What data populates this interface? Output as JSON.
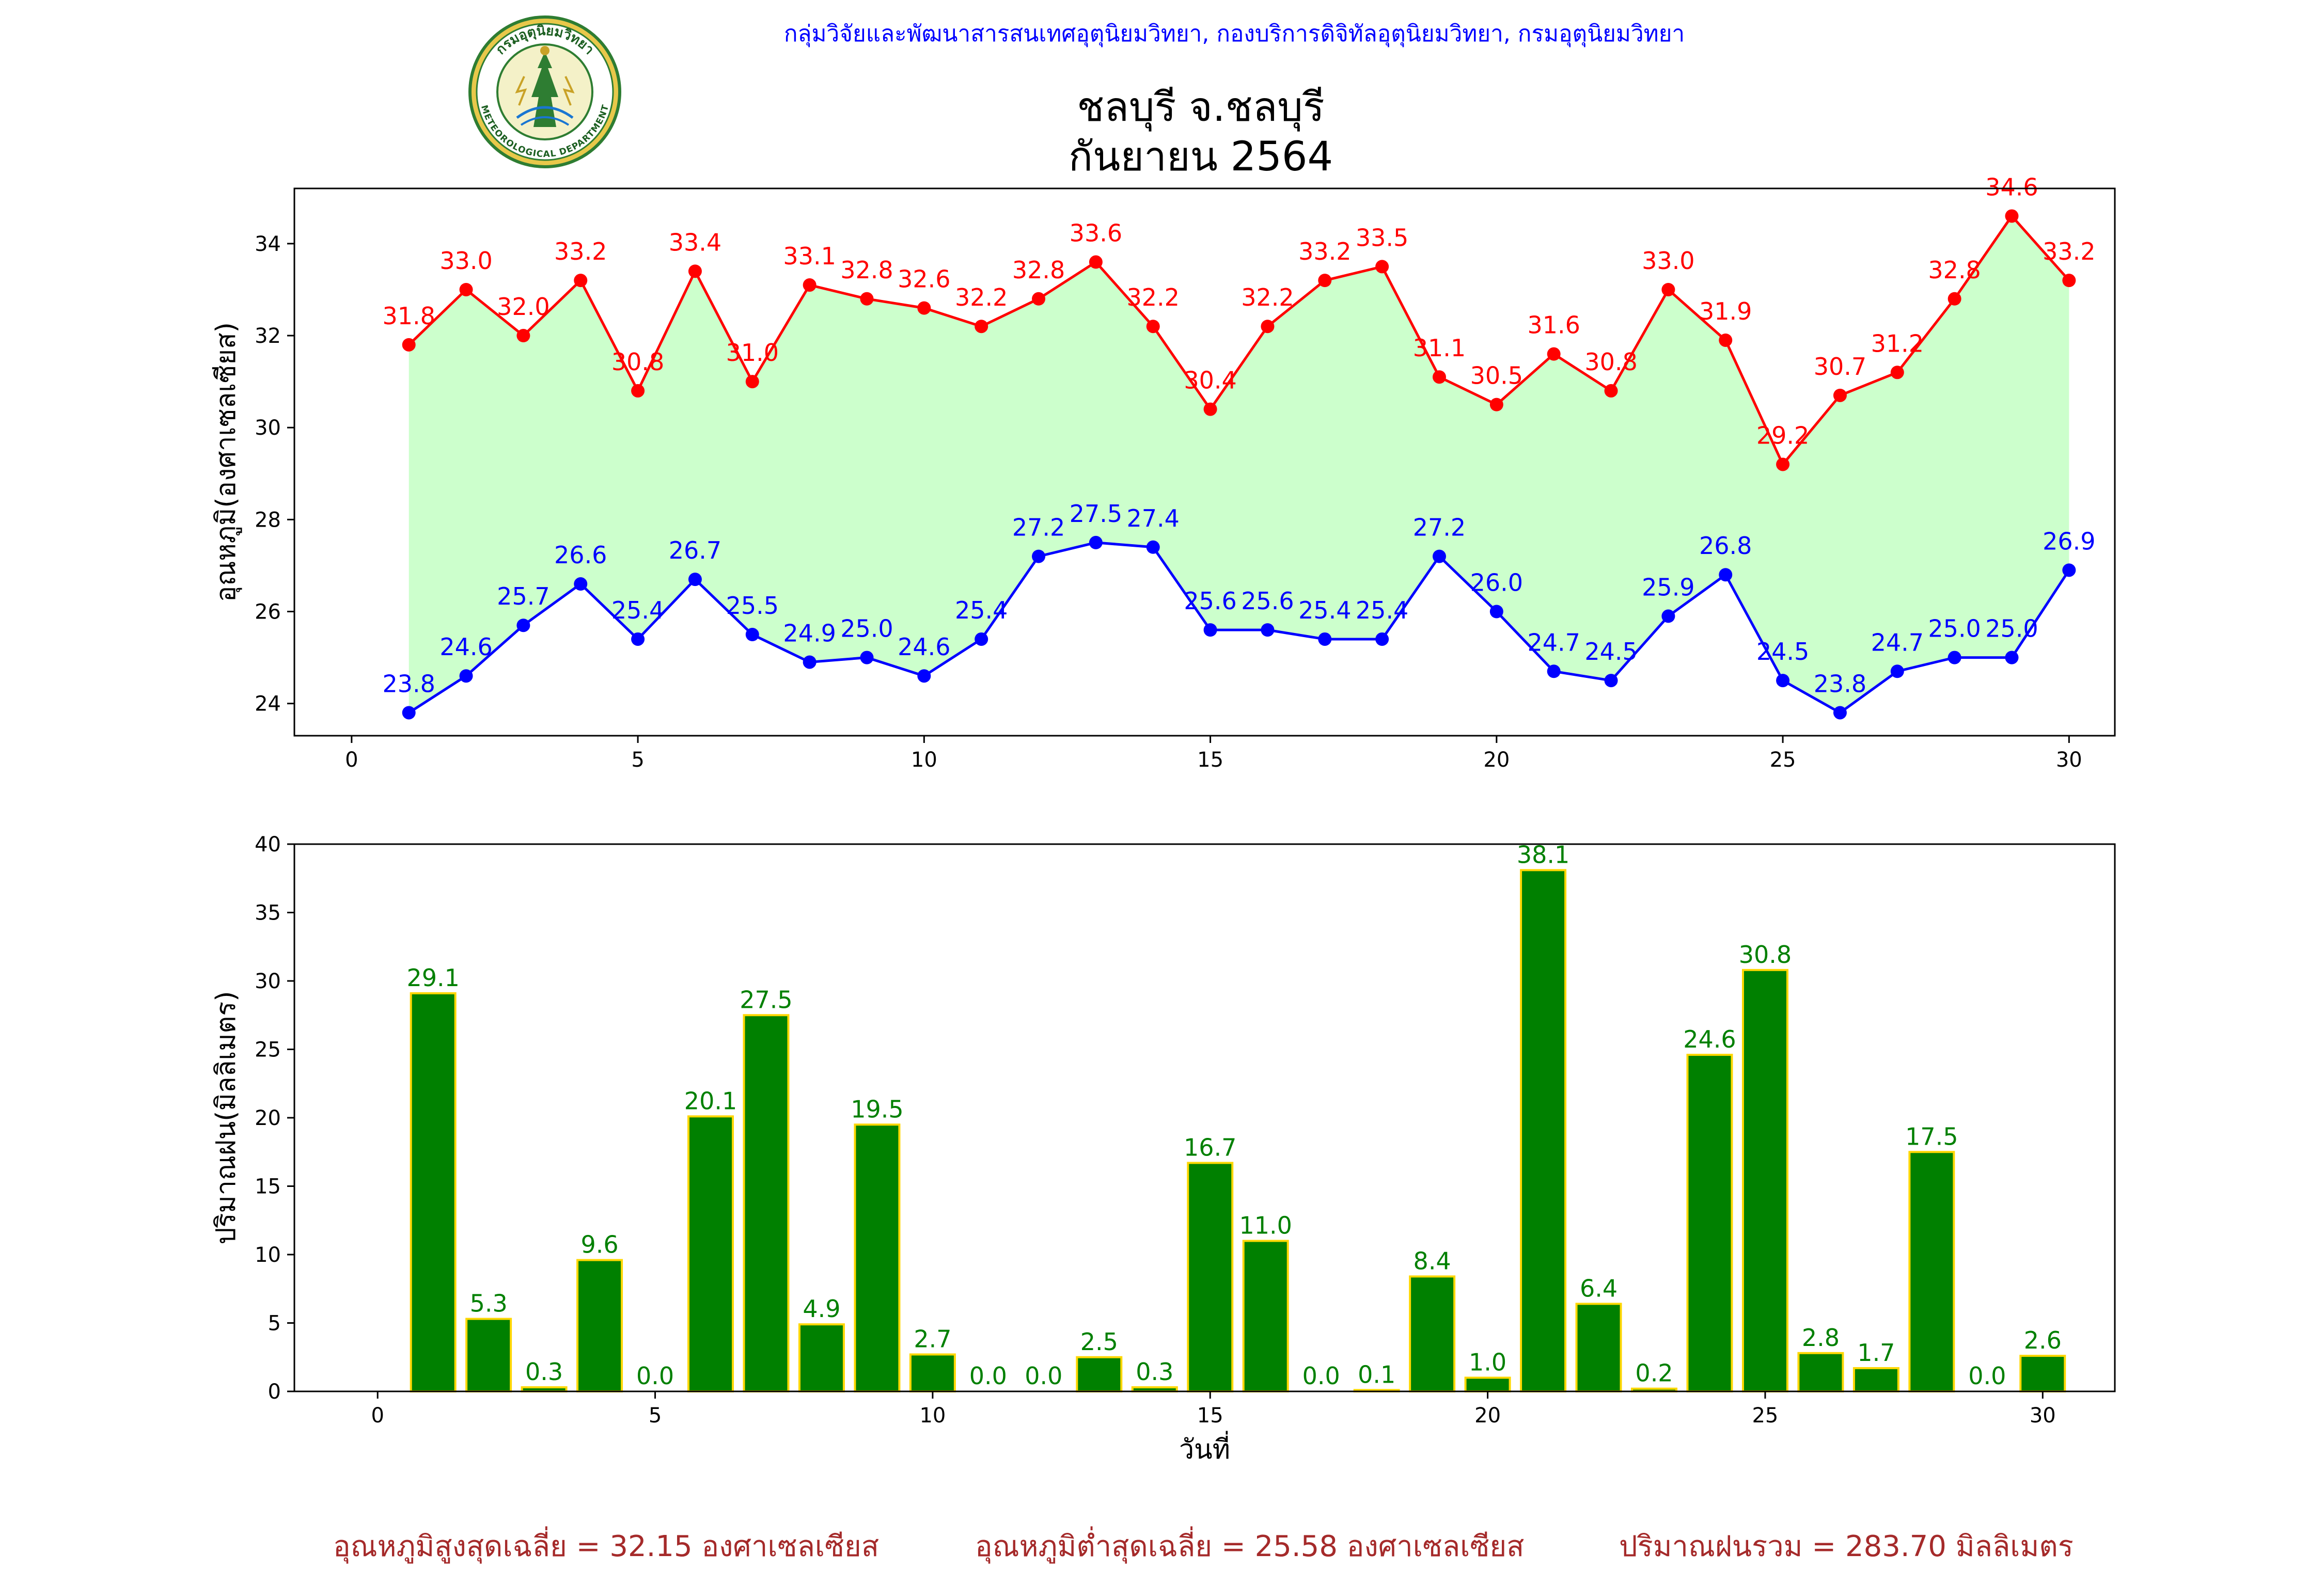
{
  "header": {
    "org_line": "กลุ่มวิจัยและพัฒนาสารสนเทศอุตุนิยมวิทยา, กองบริการดิจิทัลอุตุนิยมวิทยา, กรมอุตุนิยมวิทยา",
    "title_line1": "ชลบุรี จ.ชลบุรี",
    "title_line2": "กันยายน 2564",
    "logo_text_top": "กรมอุตุนิยมวิทยา",
    "logo_text_bottom": "METEOROLOGICAL DEPARTMENT"
  },
  "colors": {
    "max_temp": "#ff0000",
    "min_temp": "#0000ff",
    "temp_fill": "#ccffcc",
    "rain_bar": "#008000",
    "rain_edge": "#ffd700",
    "rain_label": "#008000",
    "header_text": "#0000ff",
    "footer_text": "#a52a2a"
  },
  "chart_data": [
    {
      "type": "line",
      "ylabel": "อุณหภูมิ(องศาเซลเซียส)",
      "xlim": [
        -1,
        30.8
      ],
      "ylim": [
        23.3,
        35.2
      ],
      "xticks": [
        0,
        5,
        10,
        15,
        20,
        25,
        30
      ],
      "yticks": [
        24,
        26,
        28,
        30,
        32,
        34
      ],
      "x": [
        1,
        2,
        3,
        4,
        5,
        6,
        7,
        8,
        9,
        10,
        11,
        12,
        13,
        14,
        15,
        16,
        17,
        18,
        19,
        20,
        21,
        22,
        23,
        24,
        25,
        26,
        27,
        28,
        29,
        30
      ],
      "series": [
        {
          "key": "max",
          "values": [
            31.8,
            33.0,
            32.0,
            33.2,
            30.8,
            33.4,
            31.0,
            33.1,
            32.8,
            32.6,
            32.2,
            32.8,
            33.6,
            32.2,
            30.4,
            32.2,
            33.2,
            33.5,
            31.1,
            30.5,
            31.6,
            30.8,
            33.0,
            31.9,
            29.2,
            30.7,
            31.2,
            32.8,
            34.6,
            33.2
          ]
        },
        {
          "key": "min",
          "values": [
            23.8,
            24.6,
            25.7,
            26.6,
            25.4,
            26.7,
            25.5,
            24.9,
            25.0,
            24.6,
            25.4,
            27.2,
            27.5,
            27.4,
            25.6,
            25.6,
            25.4,
            25.4,
            27.2,
            26.0,
            24.7,
            24.5,
            25.9,
            26.8,
            24.5,
            23.8,
            24.7,
            25.0,
            25.0,
            26.9
          ]
        }
      ]
    },
    {
      "type": "bar",
      "ylabel": "ปริมาณฝน(มิลลิเมตร)",
      "xlabel": "วันที่",
      "xlim": [
        -1.5,
        31.3
      ],
      "ylim": [
        0,
        40
      ],
      "xticks": [
        0,
        5,
        10,
        15,
        20,
        25,
        30
      ],
      "yticks": [
        0,
        5,
        10,
        15,
        20,
        25,
        30,
        35,
        40
      ],
      "categories": [
        1,
        2,
        3,
        4,
        5,
        6,
        7,
        8,
        9,
        10,
        11,
        12,
        13,
        14,
        15,
        16,
        17,
        18,
        19,
        20,
        21,
        22,
        23,
        24,
        25,
        26,
        27,
        28,
        29,
        30
      ],
      "values": [
        29.1,
        5.3,
        0.3,
        9.6,
        0.0,
        20.1,
        27.5,
        4.9,
        19.5,
        2.7,
        0.0,
        0.0,
        2.5,
        0.3,
        16.7,
        11.0,
        0.0,
        0.1,
        8.4,
        1.0,
        38.1,
        6.4,
        0.2,
        24.6,
        30.8,
        2.8,
        1.7,
        17.5,
        0.0,
        2.6
      ]
    }
  ],
  "footer": {
    "avg_max": "อุณหภูมิสูงสุดเฉลี่ย = 32.15 องศาเซลเซียส",
    "avg_min": "อุณหภูมิต่ำสุดเฉลี่ย = 25.58 องศาเซลเซียส",
    "total_rain": "ปริมาณฝนรวม = 283.70 มิลลิเมตร"
  }
}
